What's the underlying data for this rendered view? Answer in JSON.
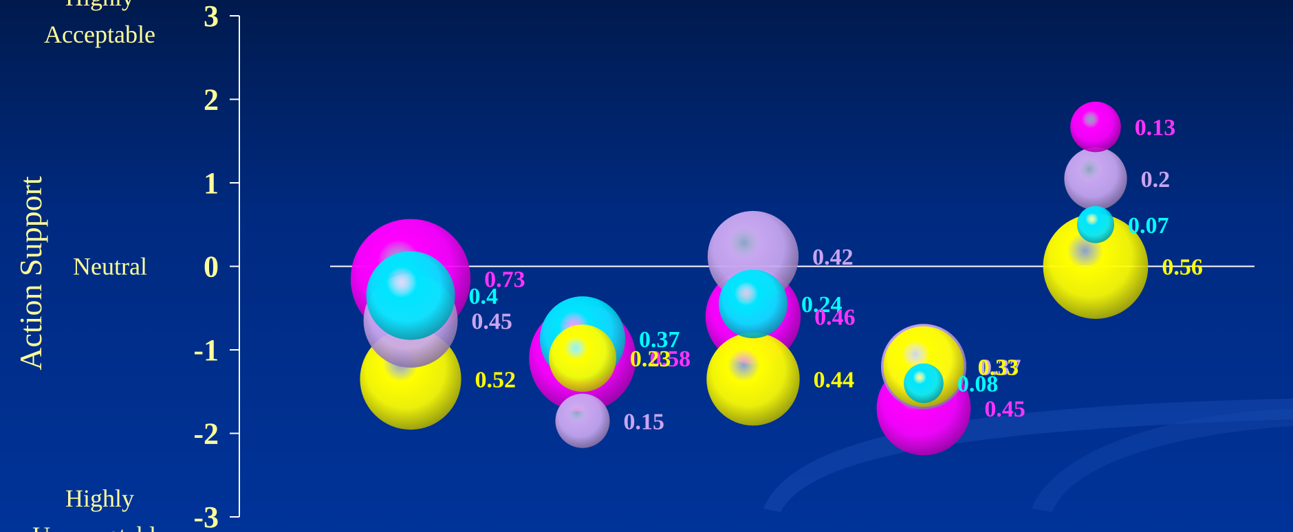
{
  "chart_data": {
    "type": "bubble",
    "ylabel": "Action Support",
    "ylim": [
      -3,
      3
    ],
    "yticks": [
      3,
      2,
      1,
      0,
      -1,
      -2,
      -3
    ],
    "ytick_labels": [
      "3",
      "2",
      "1",
      "0",
      "-1",
      "-2",
      "-3"
    ],
    "y_category_labels": [
      {
        "y": 3,
        "lines": [
          "Highly",
          "Acceptable"
        ]
      },
      {
        "y": 0,
        "lines": [
          "Neutral"
        ]
      },
      {
        "y": -3,
        "lines": [
          "Highly",
          "Unacceptable"
        ]
      }
    ],
    "groups": [
      1,
      2,
      3,
      4,
      5
    ],
    "series_colors": {
      "magenta": "#ff00ff",
      "lavender": "#c8a6f0",
      "cyan": "#00e5ff",
      "yellow": "#ffff00"
    },
    "label_colors": {
      "magenta": "#ff33ff",
      "lavender": "#c8a6f0",
      "cyan": "#00ffff",
      "yellow": "#ffff00"
    },
    "points": [
      {
        "group": 1,
        "series": "lavender",
        "y": -0.65,
        "size": 0.45,
        "label": "0.45"
      },
      {
        "group": 1,
        "series": "cyan",
        "y": -0.35,
        "size": 0.4,
        "label": "0.4"
      },
      {
        "group": 1,
        "series": "magenta",
        "y": -0.15,
        "size": 0.73,
        "label": "0.73"
      },
      {
        "group": 1,
        "series": "yellow",
        "y": -1.35,
        "size": 0.52,
        "label": "0.52"
      },
      {
        "group": 2,
        "series": "lavender",
        "y": -1.85,
        "size": 0.15,
        "label": "0.15"
      },
      {
        "group": 2,
        "series": "magenta",
        "y": -1.1,
        "size": 0.58,
        "label": "0.58"
      },
      {
        "group": 2,
        "series": "cyan",
        "y": -0.87,
        "size": 0.37,
        "label": "0.37"
      },
      {
        "group": 2,
        "series": "yellow",
        "y": -1.1,
        "size": 0.23,
        "label": "0.23"
      },
      {
        "group": 3,
        "series": "lavender",
        "y": 0.12,
        "size": 0.42,
        "label": "0.42"
      },
      {
        "group": 3,
        "series": "cyan",
        "y": -0.45,
        "size": 0.24,
        "label": "0.24"
      },
      {
        "group": 3,
        "series": "magenta",
        "y": -0.6,
        "size": 0.46,
        "label": "0.46"
      },
      {
        "group": 3,
        "series": "yellow",
        "y": -1.35,
        "size": 0.44,
        "label": "0.44"
      },
      {
        "group": 4,
        "series": "magenta",
        "y": -1.7,
        "size": 0.45,
        "label": "0.45"
      },
      {
        "group": 4,
        "series": "lavender",
        "y": -1.2,
        "size": 0.37,
        "label": "0.37"
      },
      {
        "group": 4,
        "series": "cyan",
        "y": -1.4,
        "size": 0.08,
        "label": "0.08"
      },
      {
        "group": 4,
        "series": "yellow",
        "y": -1.2,
        "size": 0.33,
        "label": "0.33"
      },
      {
        "group": 5,
        "series": "magenta",
        "y": 1.67,
        "size": 0.13,
        "label": "0.13"
      },
      {
        "group": 5,
        "series": "lavender",
        "y": 1.05,
        "size": 0.2,
        "label": "0.2"
      },
      {
        "group": 5,
        "series": "cyan",
        "y": 0.5,
        "size": 0.07,
        "label": "0.07"
      },
      {
        "group": 5,
        "series": "yellow",
        "y": 0.0,
        "size": 0.56,
        "label": "0.56"
      }
    ]
  }
}
